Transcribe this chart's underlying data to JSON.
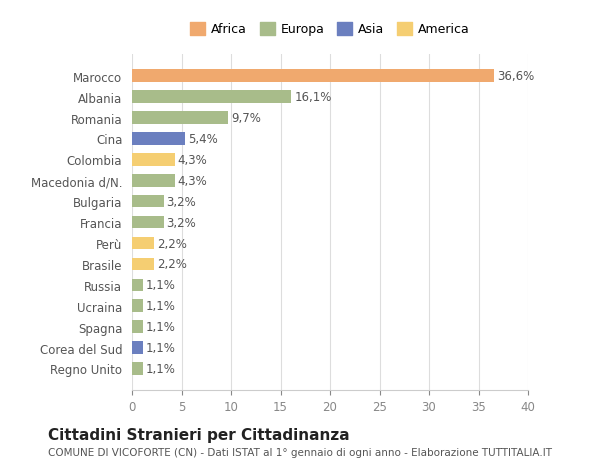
{
  "countries": [
    "Marocco",
    "Albania",
    "Romania",
    "Cina",
    "Colombia",
    "Macedonia d/N.",
    "Bulgaria",
    "Francia",
    "Perù",
    "Brasile",
    "Russia",
    "Ucraina",
    "Spagna",
    "Corea del Sud",
    "Regno Unito"
  ],
  "values": [
    36.6,
    16.1,
    9.7,
    5.4,
    4.3,
    4.3,
    3.2,
    3.2,
    2.2,
    2.2,
    1.1,
    1.1,
    1.1,
    1.1,
    1.1
  ],
  "labels": [
    "36,6%",
    "16,1%",
    "9,7%",
    "5,4%",
    "4,3%",
    "4,3%",
    "3,2%",
    "3,2%",
    "2,2%",
    "2,2%",
    "1,1%",
    "1,1%",
    "1,1%",
    "1,1%",
    "1,1%"
  ],
  "continents": [
    "Africa",
    "Europa",
    "Europa",
    "Asia",
    "America",
    "Europa",
    "Europa",
    "Europa",
    "America",
    "America",
    "Europa",
    "Europa",
    "Europa",
    "Asia",
    "Europa"
  ],
  "continent_colors": {
    "Africa": "#F0A96E",
    "Europa": "#A8BC8A",
    "Asia": "#6B7FBF",
    "America": "#F5CE72"
  },
  "legend_order": [
    "Africa",
    "Europa",
    "Asia",
    "America"
  ],
  "legend_colors": [
    "#F0A96E",
    "#A8BC8A",
    "#6B7FBF",
    "#F5CE72"
  ],
  "xlim": [
    0,
    40
  ],
  "xticks": [
    0,
    5,
    10,
    15,
    20,
    25,
    30,
    35,
    40
  ],
  "background_color": "#ffffff",
  "grid_color": "#dddddd",
  "title": "Cittadini Stranieri per Cittadinanza",
  "subtitle": "COMUNE DI VICOFORTE (CN) - Dati ISTAT al 1° gennaio di ogni anno - Elaborazione TUTTITALIA.IT",
  "bar_height": 0.6,
  "label_fontsize": 8.5,
  "ytick_fontsize": 8.5,
  "xtick_fontsize": 8.5,
  "title_fontsize": 11,
  "subtitle_fontsize": 7.5
}
